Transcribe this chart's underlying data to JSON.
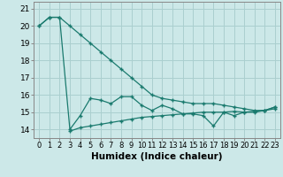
{
  "line1": [
    20.0,
    20.5,
    20.5,
    20.0,
    19.5,
    19.0,
    18.5,
    18.0,
    17.5,
    17.0,
    16.5,
    16.0,
    15.8,
    15.7,
    15.6,
    15.5,
    15.5,
    15.5,
    15.4,
    15.3,
    15.2,
    15.1,
    15.1,
    15.3
  ],
  "line2": [
    20.0,
    20.5,
    20.5,
    14.0,
    14.8,
    15.8,
    15.7,
    15.5,
    15.9,
    15.9,
    15.4,
    15.1,
    15.4,
    15.2,
    14.9,
    14.9,
    14.8,
    14.2,
    15.0,
    14.8,
    15.0,
    15.0,
    15.1,
    15.3
  ],
  "line3": [
    null,
    null,
    null,
    13.9,
    14.1,
    14.2,
    14.3,
    14.4,
    14.5,
    14.6,
    14.7,
    14.75,
    14.8,
    14.85,
    14.9,
    14.95,
    15.0,
    15.0,
    15.0,
    15.05,
    15.0,
    15.05,
    15.1,
    15.2
  ],
  "x": [
    0,
    1,
    2,
    3,
    4,
    5,
    6,
    7,
    8,
    9,
    10,
    11,
    12,
    13,
    14,
    15,
    16,
    17,
    18,
    19,
    20,
    21,
    22,
    23
  ],
  "line_color": "#1a7a6e",
  "bg_color": "#cce8e8",
  "grid_color": "#aacfcf",
  "xlabel": "Humidex (Indice chaleur)",
  "ylim": [
    13.5,
    21.4
  ],
  "xlim": [
    -0.5,
    23.5
  ],
  "yticks": [
    14,
    15,
    16,
    17,
    18,
    19,
    20,
    21
  ],
  "xticks": [
    0,
    1,
    2,
    3,
    4,
    5,
    6,
    7,
    8,
    9,
    10,
    11,
    12,
    13,
    14,
    15,
    16,
    17,
    18,
    19,
    20,
    21,
    22,
    23
  ],
  "marker": "+",
  "markersize": 3.5,
  "linewidth": 0.9,
  "font_size": 6.5,
  "xlabel_fontsize": 7.5
}
